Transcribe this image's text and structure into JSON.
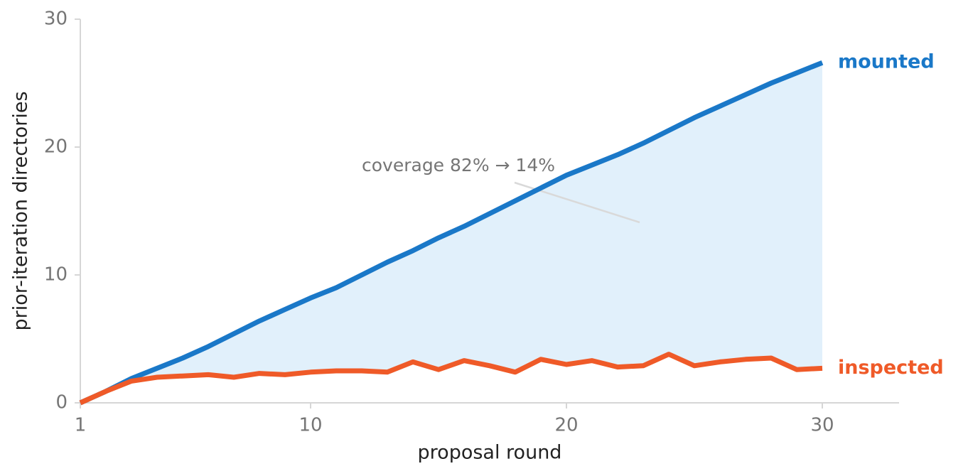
{
  "chart_data": {
    "type": "line",
    "x_label": "proposal round",
    "y_label": "prior-iteration directories",
    "annotation": "coverage 82% → 14%",
    "x": [
      1,
      2,
      3,
      4,
      5,
      6,
      7,
      8,
      9,
      10,
      11,
      12,
      13,
      14,
      15,
      16,
      17,
      18,
      19,
      20,
      21,
      22,
      23,
      24,
      25,
      26,
      27,
      28,
      29,
      30
    ],
    "series": [
      {
        "name": "mounted",
        "color": "#1a78c8",
        "values": [
          0,
          0.9,
          1.9,
          2.7,
          3.5,
          4.4,
          5.4,
          6.4,
          7.3,
          8.2,
          9.0,
          10.0,
          11.0,
          11.9,
          12.9,
          13.8,
          14.8,
          15.8,
          16.8,
          17.8,
          18.6,
          19.4,
          20.3,
          21.3,
          22.3,
          23.2,
          24.1,
          25.0,
          25.8,
          26.6
        ]
      },
      {
        "name": "inspected",
        "color": "#ef5a28",
        "values": [
          0,
          0.9,
          1.7,
          2.0,
          2.1,
          2.2,
          2.0,
          2.3,
          2.2,
          2.4,
          2.5,
          2.5,
          2.4,
          3.2,
          2.6,
          3.3,
          2.9,
          2.4,
          3.4,
          3.0,
          3.3,
          2.8,
          2.9,
          3.8,
          2.9,
          3.2,
          3.4,
          3.5,
          2.6,
          2.7
        ]
      }
    ],
    "fill_between_color": "#e1f0fb",
    "xlim": [
      1,
      33
    ],
    "xticks": [
      1,
      10,
      20,
      30
    ],
    "ylim": [
      0,
      30
    ],
    "yticks": [
      0,
      10,
      20,
      30
    ],
    "grid": false
  }
}
